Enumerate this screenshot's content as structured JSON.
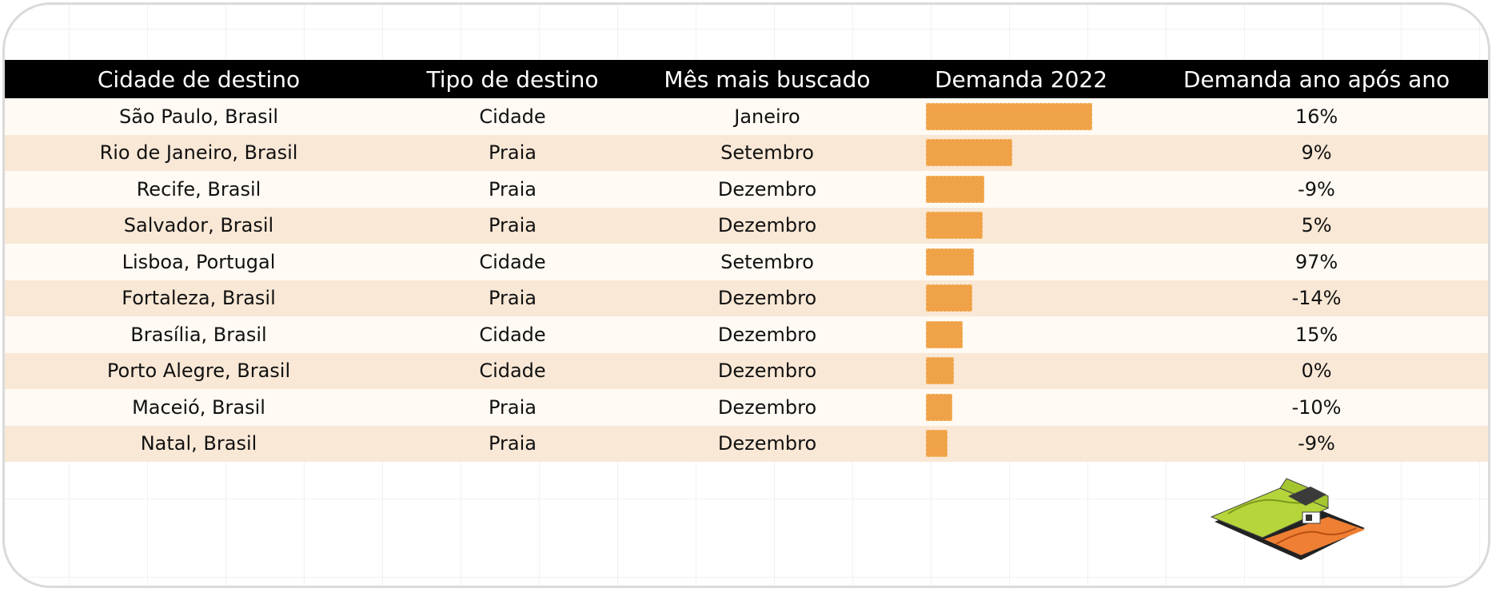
{
  "chart_data": {
    "type": "table",
    "columns": [
      "Cidade de destino",
      "Tipo de destino",
      "Mês mais buscado",
      "Demanda 2022",
      "Demanda ano após ano"
    ],
    "bar_color": "#f0a248",
    "rows": [
      {
        "city": "São Paulo, Brasil",
        "type": "Cidade",
        "month": "Janeiro",
        "demand": 100,
        "yoy": "16%"
      },
      {
        "city": "Rio de Janeiro, Brasil",
        "type": "Praia",
        "month": "Setembro",
        "demand": 52,
        "yoy": "9%"
      },
      {
        "city": "Recife, Brasil",
        "type": "Praia",
        "month": "Dezembro",
        "demand": 35,
        "yoy": "-9%"
      },
      {
        "city": "Salvador, Brasil",
        "type": "Praia",
        "month": "Dezembro",
        "demand": 34,
        "yoy": "5%"
      },
      {
        "city": "Lisboa, Portugal",
        "type": "Cidade",
        "month": "Setembro",
        "demand": 29,
        "yoy": "97%"
      },
      {
        "city": "Fortaleza, Brasil",
        "type": "Praia",
        "month": "Dezembro",
        "demand": 28,
        "yoy": "-14%"
      },
      {
        "city": "Brasília, Brasil",
        "type": "Cidade",
        "month": "Dezembro",
        "demand": 22,
        "yoy": "15%"
      },
      {
        "city": "Porto Alegre, Brasil",
        "type": "Cidade",
        "month": "Dezembro",
        "demand": 17,
        "yoy": "0%"
      },
      {
        "city": "Maceió, Brasil",
        "type": "Praia",
        "month": "Dezembro",
        "demand": 16,
        "yoy": "-10%"
      },
      {
        "city": "Natal, Brasil",
        "type": "Praia",
        "month": "Dezembro",
        "demand": 13,
        "yoy": "-9%"
      }
    ]
  },
  "illustration": {
    "icon": "passport-wallet-icon",
    "colors": {
      "cover": "#b5d53a",
      "insert": "#ef7f33",
      "edge": "#222222"
    }
  }
}
